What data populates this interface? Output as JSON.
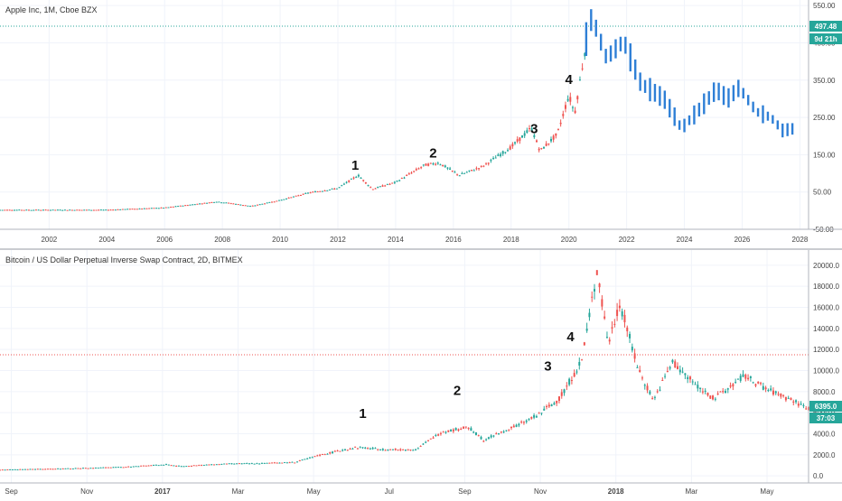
{
  "chart_data": [
    {
      "type": "candlestick",
      "title": "Apple Inc, 1M, Cboe BZX",
      "x_ticks": [
        "2002",
        "2004",
        "2006",
        "2008",
        "2010",
        "2012",
        "2014",
        "2016",
        "2018",
        "2020",
        "2022",
        "2024",
        "2026",
        "2028"
      ],
      "y_ticks": [
        "550.00",
        "450.00",
        "350.00",
        "250.00",
        "150.00",
        "50.00",
        "-50.00"
      ],
      "y_range": [
        -50,
        560
      ],
      "x_range": [
        2000.3,
        2028.3
      ],
      "price_line": {
        "label": "497.48",
        "value": 497.48,
        "color": "#26a69a"
      },
      "countdown": {
        "label": "9d 21h",
        "color": "#26a69a"
      },
      "annotations": [
        {
          "text": "1",
          "x": 2012.6,
          "y": 110
        },
        {
          "text": "2",
          "x": 2015.3,
          "y": 142
        },
        {
          "text": "3",
          "x": 2018.8,
          "y": 208
        },
        {
          "text": "4",
          "x": 2020.0,
          "y": 340
        }
      ],
      "historical_anchors": [
        {
          "x": 2000.3,
          "y": 2
        },
        {
          "x": 2004.0,
          "y": 2
        },
        {
          "x": 2006.0,
          "y": 8
        },
        {
          "x": 2007.8,
          "y": 24
        },
        {
          "x": 2008.3,
          "y": 20
        },
        {
          "x": 2009.0,
          "y": 12
        },
        {
          "x": 2010.0,
          "y": 28
        },
        {
          "x": 2011.0,
          "y": 48
        },
        {
          "x": 2012.0,
          "y": 60
        },
        {
          "x": 2012.7,
          "y": 95
        },
        {
          "x": 2013.2,
          "y": 58
        },
        {
          "x": 2014.0,
          "y": 76
        },
        {
          "x": 2015.0,
          "y": 122
        },
        {
          "x": 2015.5,
          "y": 128
        },
        {
          "x": 2016.2,
          "y": 95
        },
        {
          "x": 2017.0,
          "y": 118
        },
        {
          "x": 2018.0,
          "y": 170
        },
        {
          "x": 2018.7,
          "y": 222
        },
        {
          "x": 2019.0,
          "y": 160
        },
        {
          "x": 2019.6,
          "y": 205
        },
        {
          "x": 2020.0,
          "y": 310
        },
        {
          "x": 2020.2,
          "y": 260
        },
        {
          "x": 2020.6,
          "y": 450
        }
      ],
      "projection_color": "#2e7fd6",
      "projection_anchors": [
        {
          "x": 2020.6,
          "y": 460
        },
        {
          "x": 2020.8,
          "y": 520
        },
        {
          "x": 2021.3,
          "y": 410
        },
        {
          "x": 2021.9,
          "y": 455
        },
        {
          "x": 2022.5,
          "y": 340
        },
        {
          "x": 2023.3,
          "y": 300
        },
        {
          "x": 2023.9,
          "y": 220
        },
        {
          "x": 2024.5,
          "y": 270
        },
        {
          "x": 2025.1,
          "y": 325
        },
        {
          "x": 2025.5,
          "y": 300
        },
        {
          "x": 2025.9,
          "y": 330
        },
        {
          "x": 2026.5,
          "y": 265
        },
        {
          "x": 2027.0,
          "y": 250
        },
        {
          "x": 2027.4,
          "y": 215
        },
        {
          "x": 2027.8,
          "y": 220
        }
      ]
    },
    {
      "type": "candlestick",
      "title": "Bitcoin / US Dollar Perpetual Inverse Swap Contract, 2D, BITMEX",
      "x_ticks": [
        {
          "label": "Sep",
          "bold": false
        },
        {
          "label": "Nov",
          "bold": false
        },
        {
          "label": "2017",
          "bold": true
        },
        {
          "label": "Mar",
          "bold": false
        },
        {
          "label": "May",
          "bold": false
        },
        {
          "label": "Jul",
          "bold": false
        },
        {
          "label": "Sep",
          "bold": false
        },
        {
          "label": "Nov",
          "bold": false
        },
        {
          "label": "2018",
          "bold": true
        },
        {
          "label": "Mar",
          "bold": false
        },
        {
          "label": "May",
          "bold": false
        }
      ],
      "y_ticks": [
        "20000.0",
        "18000.0",
        "16000.0",
        "14000.0",
        "12000.0",
        "10000.0",
        "8000.0",
        "6000.0",
        "4000.0",
        "2000.0",
        "0.0"
      ],
      "y_range": [
        -500,
        20500
      ],
      "x_range": [
        0,
        21.4
      ],
      "price_line": {
        "label": "6395.0",
        "value": 6395,
        "color": "#26a69a"
      },
      "countdown": {
        "label": "37:03",
        "color": "#26a69a"
      },
      "reference_line": {
        "value": 11500,
        "color": "#ef5350"
      },
      "annotations": [
        {
          "text": "1",
          "x": 9.6,
          "y": 5500
        },
        {
          "text": "2",
          "x": 12.1,
          "y": 7700
        },
        {
          "text": "3",
          "x": 14.5,
          "y": 10000
        },
        {
          "text": "4",
          "x": 15.1,
          "y": 12800
        }
      ],
      "history_anchors": [
        {
          "x": 0.0,
          "y": 580
        },
        {
          "x": 2.0,
          "y": 720
        },
        {
          "x": 3.3,
          "y": 850
        },
        {
          "x": 4.4,
          "y": 1080
        },
        {
          "x": 4.8,
          "y": 920
        },
        {
          "x": 6.0,
          "y": 1150
        },
        {
          "x": 7.0,
          "y": 1200
        },
        {
          "x": 7.8,
          "y": 1300
        },
        {
          "x": 8.5,
          "y": 2000
        },
        {
          "x": 9.4,
          "y": 2700
        },
        {
          "x": 10.2,
          "y": 2500
        },
        {
          "x": 11.0,
          "y": 2500
        },
        {
          "x": 11.7,
          "y": 4200
        },
        {
          "x": 12.4,
          "y": 4600
        },
        {
          "x": 12.8,
          "y": 3400
        },
        {
          "x": 13.7,
          "y": 4800
        },
        {
          "x": 14.2,
          "y": 5700
        },
        {
          "x": 14.8,
          "y": 7300
        },
        {
          "x": 15.4,
          "y": 11000
        },
        {
          "x": 15.8,
          "y": 19500
        },
        {
          "x": 16.1,
          "y": 12500
        },
        {
          "x": 16.4,
          "y": 16500
        },
        {
          "x": 16.9,
          "y": 10000
        },
        {
          "x": 17.3,
          "y": 7200
        },
        {
          "x": 17.8,
          "y": 10800
        },
        {
          "x": 18.3,
          "y": 9000
        },
        {
          "x": 18.9,
          "y": 7300
        },
        {
          "x": 19.7,
          "y": 9500
        },
        {
          "x": 20.3,
          "y": 8200
        },
        {
          "x": 21.0,
          "y": 7100
        },
        {
          "x": 21.4,
          "y": 6395
        }
      ]
    }
  ]
}
